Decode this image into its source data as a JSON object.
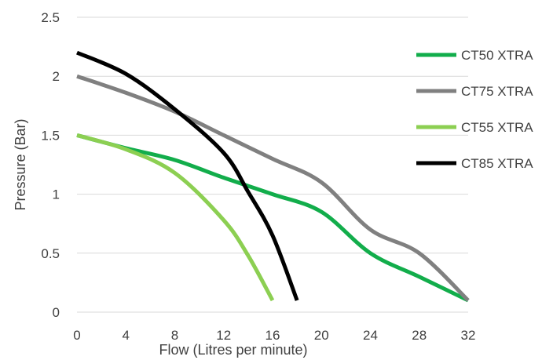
{
  "chart_data": {
    "type": "line",
    "title": "",
    "xlabel": "Flow (Litres per minute)",
    "ylabel": "Pressure (Bar)",
    "xlim": [
      0,
      32
    ],
    "ylim": [
      0,
      2.5
    ],
    "x_ticks": [
      0,
      4,
      8,
      12,
      16,
      20,
      24,
      28,
      32
    ],
    "y_ticks": [
      0,
      0.5,
      1,
      1.5,
      2,
      2.5
    ],
    "x_tick_labels": [
      "0",
      "4",
      "8",
      "12",
      "16",
      "20",
      "24",
      "28",
      "32"
    ],
    "y_tick_labels": [
      "0",
      "0.5",
      "1",
      "1.5",
      "2",
      "2.5"
    ],
    "grid": "horizontal",
    "legend_position": "right",
    "series": [
      {
        "name": "CT50 XTRA",
        "color": "#12ad4b",
        "points": [
          [
            0,
            1.5
          ],
          [
            4,
            1.39
          ],
          [
            8,
            1.29
          ],
          [
            12,
            1.14
          ],
          [
            16,
            1.0
          ],
          [
            20,
            0.85
          ],
          [
            24,
            0.5
          ],
          [
            28,
            0.3
          ],
          [
            32,
            0.1
          ]
        ]
      },
      {
        "name": "CT75 XTRA",
        "color": "#808080",
        "points": [
          [
            0,
            2.0
          ],
          [
            4,
            1.86
          ],
          [
            8,
            1.7
          ],
          [
            12,
            1.5
          ],
          [
            16,
            1.3
          ],
          [
            20,
            1.1
          ],
          [
            24,
            0.7
          ],
          [
            28,
            0.5
          ],
          [
            32,
            0.1
          ]
        ]
      },
      {
        "name": "CT55 XTRA",
        "color": "#8ccf52",
        "points": [
          [
            0,
            1.5
          ],
          [
            4,
            1.38
          ],
          [
            8,
            1.18
          ],
          [
            12,
            0.78
          ],
          [
            14,
            0.48
          ],
          [
            16,
            0.1
          ]
        ]
      },
      {
        "name": "CT85 XTRA",
        "color": "#000000",
        "points": [
          [
            0,
            2.2
          ],
          [
            4,
            2.02
          ],
          [
            8,
            1.72
          ],
          [
            12,
            1.35
          ],
          [
            14,
            1.02
          ],
          [
            16,
            0.65
          ],
          [
            18,
            0.1
          ]
        ]
      }
    ]
  }
}
